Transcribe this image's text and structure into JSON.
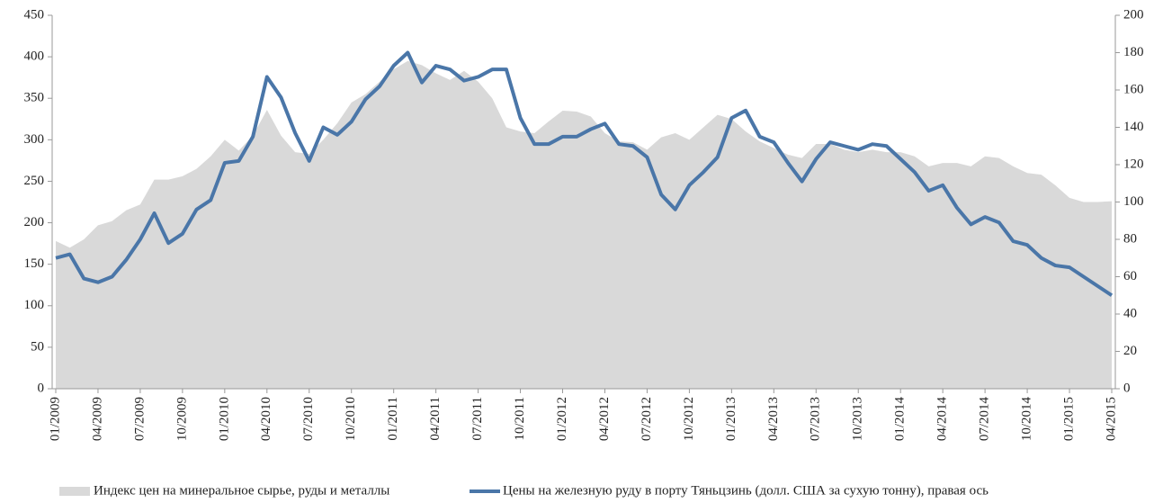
{
  "chart_data": {
    "type": "area-line",
    "categories": [
      "01/2009",
      null,
      null,
      "04/2009",
      null,
      null,
      "07/2009",
      null,
      null,
      "10/2009",
      null,
      null,
      "01/2010",
      null,
      null,
      "04/2010",
      null,
      null,
      "07/2010",
      null,
      null,
      "10/2010",
      null,
      null,
      "01/2011",
      null,
      null,
      "04/2011",
      null,
      null,
      "07/2011",
      null,
      null,
      "10/2011",
      null,
      null,
      "01/2012",
      null,
      null,
      "04/2012",
      null,
      null,
      "07/2012",
      null,
      null,
      "10/2012",
      null,
      null,
      "01/2013",
      null,
      null,
      "04/2013",
      null,
      null,
      "07/2013",
      null,
      null,
      "10/2013",
      null,
      null,
      "01/2014",
      null,
      null,
      "04/2014",
      null,
      null,
      "07/2014",
      null,
      null,
      "10/2014",
      null,
      null,
      "01/2015",
      null,
      null,
      "04/2015"
    ],
    "series": [
      {
        "name": "Индекс цен на минеральное сырье, руды и металлы",
        "color": "#d9d9d9",
        "kind": "area",
        "values": [
          178,
          170,
          180,
          197,
          202,
          215,
          222,
          252,
          252,
          256,
          265,
          280,
          300,
          287,
          305,
          336,
          305,
          285,
          283,
          300,
          320,
          345,
          355,
          370,
          385,
          395,
          390,
          380,
          372,
          383,
          370,
          350,
          315,
          310,
          308,
          322,
          335,
          334,
          328,
          308,
          298,
          297,
          288,
          303,
          308,
          300,
          315,
          330,
          325,
          310,
          298,
          290,
          282,
          278,
          295,
          295,
          288,
          285,
          288,
          285,
          285,
          280,
          268,
          272,
          272,
          268,
          280,
          278,
          268,
          260,
          258,
          245,
          230,
          225,
          225,
          226
        ]
      },
      {
        "name": "Цены на железную руду в порту Тяньцзинь (долл. США за сухую тонну), правая ось",
        "color": "#4a76a8",
        "kind": "line",
        "axis": "y2",
        "values": [
          70,
          72,
          59,
          57,
          60,
          69,
          80,
          94,
          78,
          83,
          96,
          101,
          121,
          122,
          135,
          167,
          156,
          137,
          122,
          140,
          136,
          143,
          155,
          162,
          173,
          180,
          164,
          173,
          171,
          165,
          167,
          171,
          171,
          145,
          131,
          131,
          135,
          135,
          139,
          142,
          131,
          130,
          124,
          104,
          96,
          109,
          116,
          124,
          145,
          149,
          135,
          132,
          121,
          111,
          123,
          132,
          130,
          128,
          131,
          130,
          123,
          116,
          106,
          109,
          97,
          88,
          92,
          89,
          79,
          77,
          70,
          66,
          65,
          60,
          55,
          50
        ]
      }
    ],
    "ylim": [
      0,
      450
    ],
    "yticks": [
      0,
      50,
      100,
      150,
      200,
      250,
      300,
      350,
      400,
      450
    ],
    "y2lim": [
      0,
      200
    ],
    "y2ticks": [
      0,
      20,
      40,
      60,
      80,
      100,
      120,
      140,
      160,
      180,
      200
    ]
  }
}
